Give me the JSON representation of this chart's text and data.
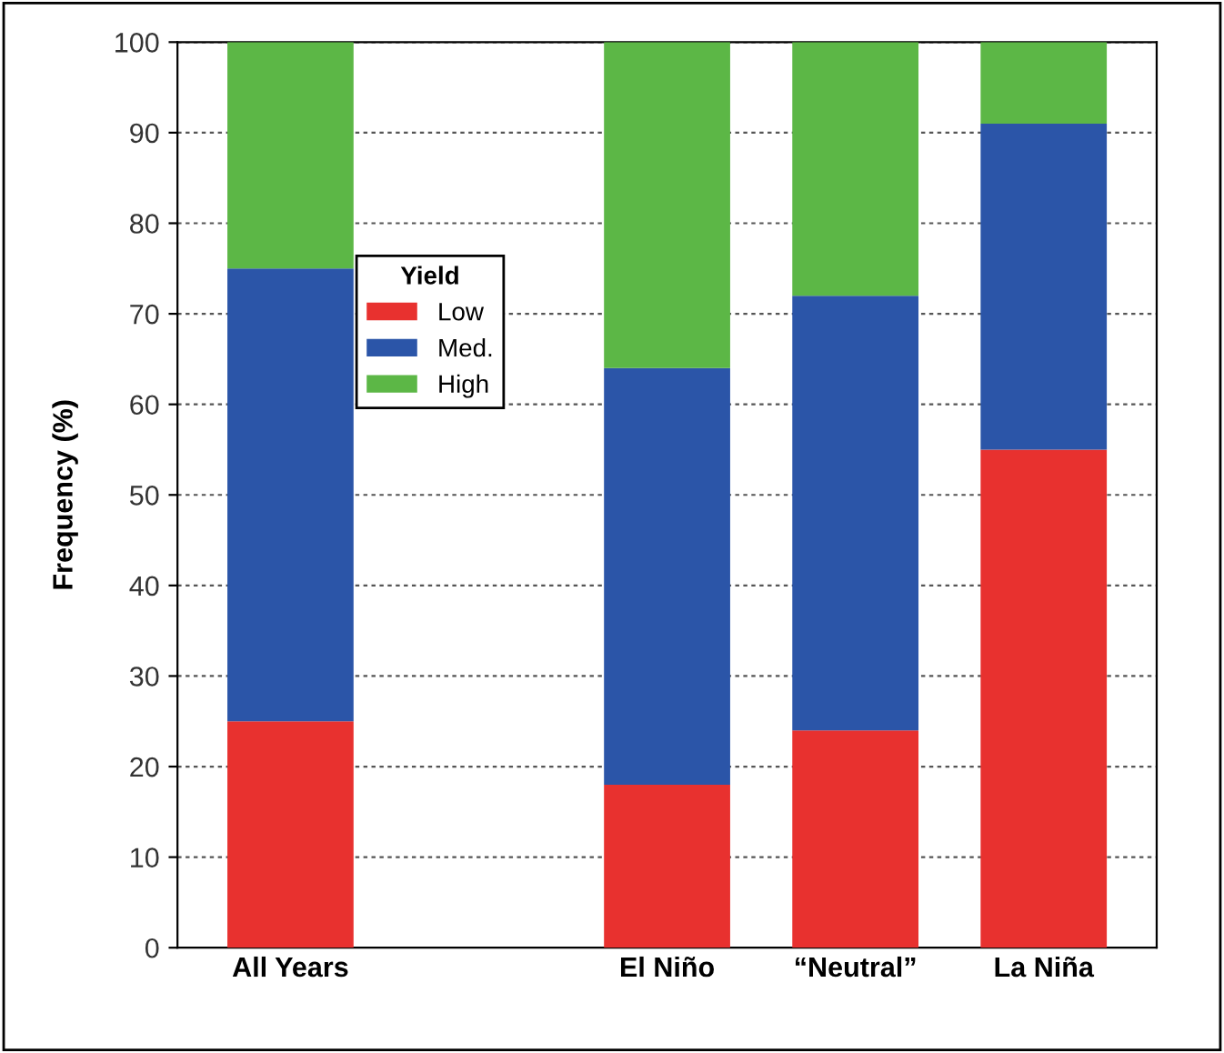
{
  "chart_data": {
    "type": "bar",
    "stacked": true,
    "ylabel": "Frequency (%)",
    "legend_title": "Yield",
    "legend": "left",
    "categories": [
      "All Years",
      null,
      "El Niño",
      "“Neutral”",
      "La Niña"
    ],
    "series": [
      {
        "name": "Low",
        "color": "#e8312f",
        "values": [
          25,
          null,
          18,
          24,
          55
        ]
      },
      {
        "name": "Med.",
        "color": "#2b55a8",
        "values": [
          50,
          null,
          46,
          48,
          36
        ]
      },
      {
        "name": "High",
        "color": "#5cb746",
        "values": [
          25,
          null,
          36,
          28,
          9
        ]
      }
    ],
    "ylim": [
      0,
      100
    ],
    "yticks": [
      0,
      10,
      20,
      30,
      40,
      50,
      60,
      70,
      80,
      90,
      100
    ],
    "grid": "y"
  }
}
